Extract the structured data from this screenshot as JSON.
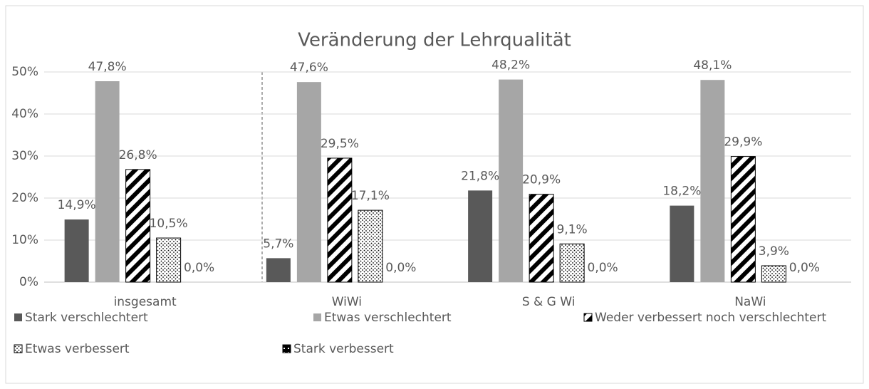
{
  "chart_data": {
    "type": "bar",
    "title": "Veränderung der Lehrqualität",
    "categories": [
      "insgesamt",
      "WiWi",
      "S & G Wi",
      "NaWi"
    ],
    "series": [
      {
        "name": "Stark verschlechtert",
        "color": "#595959",
        "pattern": "solid",
        "values": [
          14.9,
          5.7,
          21.8,
          18.2
        ],
        "value_labels": [
          "14,9%",
          "5,7%",
          "21,8%",
          "18,2%"
        ]
      },
      {
        "name": "Etwas verschlechtert",
        "color": "#a6a6a6",
        "pattern": "solid",
        "values": [
          47.8,
          47.6,
          48.2,
          48.1
        ],
        "value_labels": [
          "47,8%",
          "47,6%",
          "48,2%",
          "48,1%"
        ]
      },
      {
        "name": "Weder verbessert noch verschlechtert",
        "color": "#000000",
        "pattern": "stripes",
        "values": [
          26.8,
          29.5,
          20.9,
          29.9
        ],
        "value_labels": [
          "26,8%",
          "29,5%",
          "20,9%",
          "29,9%"
        ]
      },
      {
        "name": "Etwas verbessert",
        "color": "#000000",
        "pattern": "dots",
        "values": [
          10.5,
          17.1,
          9.1,
          3.9
        ],
        "value_labels": [
          "10,5%",
          "17,1%",
          "9,1%",
          "3,9%"
        ]
      },
      {
        "name": "Stark verbessert",
        "color": "#000000",
        "pattern": "box",
        "values": [
          0,
          0,
          0,
          0
        ],
        "value_labels": [
          "0,0%",
          "0,0%",
          "0,0%",
          "0,0%"
        ]
      }
    ],
    "ylim": [
      0,
      50
    ],
    "yticks": [
      {
        "value": 0,
        "label": "0%"
      },
      {
        "value": 10,
        "label": "10%"
      },
      {
        "value": 20,
        "label": "20%"
      },
      {
        "value": 30,
        "label": "30%"
      },
      {
        "value": 40,
        "label": "40%"
      },
      {
        "value": 50,
        "label": "50%"
      }
    ],
    "grid": true,
    "legend": "bottom"
  }
}
